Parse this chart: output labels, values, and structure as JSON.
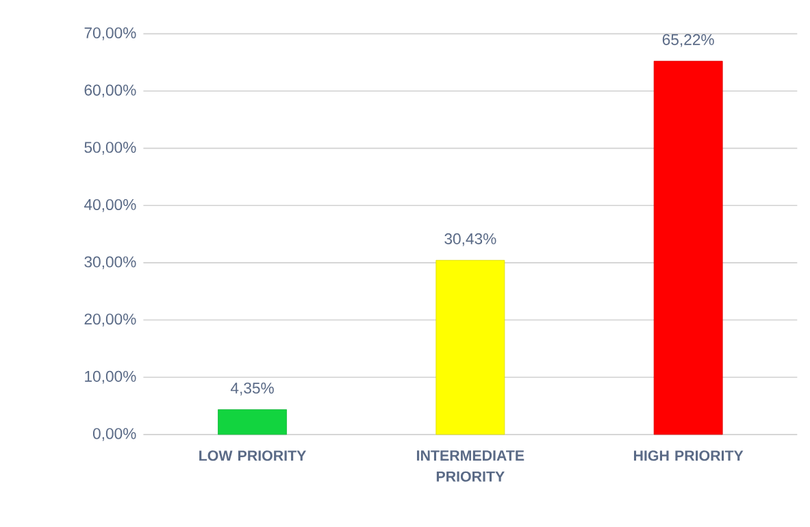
{
  "chart_data": {
    "type": "bar",
    "categories": [
      "LOW PRIORITY",
      "INTERMEDIATE PRIORITY",
      "HIGH PRIORITY"
    ],
    "values": [
      4.35,
      30.43,
      65.22
    ],
    "colors": [
      "#12d43f",
      "#ffff00",
      "#ff0000"
    ],
    "value_labels": [
      "4,35%",
      "30,43%",
      "65,22%"
    ],
    "ylim": [
      0,
      70
    ],
    "yticks": [
      {
        "value": 0,
        "label": "0,00%"
      },
      {
        "value": 10,
        "label": "10,00%"
      },
      {
        "value": 20,
        "label": "20,00%"
      },
      {
        "value": 30,
        "label": "30,00%"
      },
      {
        "value": 40,
        "label": "40,00%"
      },
      {
        "value": 50,
        "label": "50,00%"
      },
      {
        "value": 60,
        "label": "60,00%"
      },
      {
        "value": 70,
        "label": "70,00%"
      }
    ],
    "grid": "y"
  }
}
